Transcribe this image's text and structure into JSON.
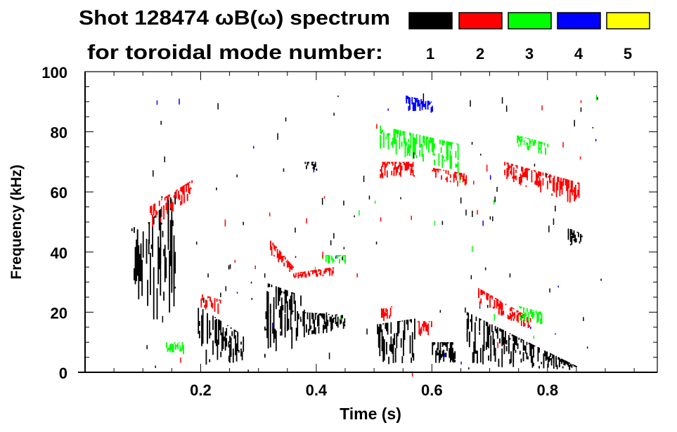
{
  "chart_data": {
    "type": "heatmap",
    "title": "Shot 128474 ωB(ω) spectrum",
    "subtitle": "for toroidal mode number:",
    "xlabel": "Time (s)",
    "ylabel": "Frequency (kHz)",
    "xlim": [
      0,
      0.99
    ],
    "ylim": [
      0,
      100
    ],
    "xticks": [
      0.2,
      0.4,
      0.6,
      0.8
    ],
    "xtick_labels": [
      "0.2",
      "0.4",
      "0.6",
      "0.8"
    ],
    "yticks": [
      0,
      20,
      40,
      60,
      80,
      100
    ],
    "ytick_labels": [
      "0",
      "20",
      "40",
      "60",
      "80",
      "100"
    ],
    "legend": [
      {
        "label": "1",
        "color": "#000000"
      },
      {
        "label": "2",
        "color": "#ff0000"
      },
      {
        "label": "3",
        "color": "#00ff00"
      },
      {
        "label": "4",
        "color": "#0000ff"
      },
      {
        "label": "5",
        "color": "#ffff00"
      }
    ],
    "legend_placement": "top-right",
    "regions": [
      {
        "mode": 1,
        "t": [
          0.08,
          0.11
        ],
        "f_start": [
          28,
          48
        ],
        "f_end": [
          15,
          50
        ]
      },
      {
        "mode": 1,
        "t": [
          0.11,
          0.155
        ],
        "f_start": [
          15,
          50
        ],
        "f_end": [
          20,
          60
        ]
      },
      {
        "mode": 1,
        "t": [
          0.195,
          0.275
        ],
        "f_start": [
          2,
          22
        ],
        "f_end": [
          3,
          12
        ]
      },
      {
        "mode": 1,
        "t": [
          0.31,
          0.38
        ],
        "f_start": [
          3,
          30
        ],
        "f_end": [
          10,
          25
        ]
      },
      {
        "mode": 1,
        "t": [
          0.38,
          0.45
        ],
        "f_start": [
          12,
          20
        ],
        "f_end": [
          14,
          19
        ]
      },
      {
        "mode": 1,
        "t": [
          0.505,
          0.575
        ],
        "f_start": [
          2,
          16
        ],
        "f_end": [
          3,
          18
        ]
      },
      {
        "mode": 1,
        "t": [
          0.6,
          0.64
        ],
        "f_start": [
          3,
          10
        ],
        "f_end": [
          3,
          10
        ]
      },
      {
        "mode": 1,
        "t": [
          0.66,
          0.85
        ],
        "f_start": [
          2,
          20
        ],
        "f_end": [
          0.5,
          2
        ]
      },
      {
        "mode": 1,
        "t": [
          0.835,
          0.86
        ],
        "f_start": [
          42,
          48
        ],
        "f_end": [
          42,
          46
        ]
      },
      {
        "mode": 1,
        "t": [
          0.38,
          0.4
        ],
        "f_start": [
          67,
          70
        ],
        "f_end": [
          67,
          70
        ]
      },
      {
        "mode": 2,
        "t": [
          0.11,
          0.185
        ],
        "f_start": [
          47,
          55
        ],
        "f_end": [
          58,
          64
        ]
      },
      {
        "mode": 2,
        "t": [
          0.2,
          0.235
        ],
        "f_start": [
          21,
          26
        ],
        "f_end": [
          19,
          24
        ]
      },
      {
        "mode": 2,
        "t": [
          0.32,
          0.36
        ],
        "f_start": [
          39,
          44
        ],
        "f_end": [
          32,
          35
        ]
      },
      {
        "mode": 2,
        "t": [
          0.36,
          0.43
        ],
        "f_start": [
          31,
          33
        ],
        "f_end": [
          32,
          35
        ]
      },
      {
        "mode": 2,
        "t": [
          0.51,
          0.57
        ],
        "f_start": [
          64,
          70
        ],
        "f_end": [
          65,
          70
        ]
      },
      {
        "mode": 2,
        "t": [
          0.51,
          0.53
        ],
        "f_start": [
          17,
          22
        ],
        "f_end": [
          17,
          22
        ]
      },
      {
        "mode": 2,
        "t": [
          0.575,
          0.6
        ],
        "f_start": [
          12,
          17
        ],
        "f_end": [
          12,
          17
        ]
      },
      {
        "mode": 2,
        "t": [
          0.68,
          0.77
        ],
        "f_start": [
          22,
          28
        ],
        "f_end": [
          14,
          18
        ]
      },
      {
        "mode": 2,
        "t": [
          0.725,
          0.855
        ],
        "f_start": [
          64,
          70
        ],
        "f_end": [
          55,
          63
        ]
      },
      {
        "mode": 2,
        "t": [
          0.6,
          0.66
        ],
        "f_start": [
          64,
          68
        ],
        "f_end": [
          62,
          66
        ]
      },
      {
        "mode": 3,
        "t": [
          0.51,
          0.645
        ],
        "f_start": [
          74,
          82
        ],
        "f_end": [
          66,
          76
        ]
      },
      {
        "mode": 3,
        "t": [
          0.745,
          0.8
        ],
        "f_start": [
          74,
          79
        ],
        "f_end": [
          72,
          76
        ]
      },
      {
        "mode": 3,
        "t": [
          0.41,
          0.45
        ],
        "f_start": [
          35,
          39
        ],
        "f_end": [
          36,
          39
        ]
      },
      {
        "mode": 3,
        "t": [
          0.75,
          0.79
        ],
        "f_start": [
          17,
          22
        ],
        "f_end": [
          15,
          20
        ]
      },
      {
        "mode": 3,
        "t": [
          0.14,
          0.17
        ],
        "f_start": [
          6,
          10
        ],
        "f_end": [
          6,
          10
        ]
      },
      {
        "mode": 4,
        "t": [
          0.555,
          0.6
        ],
        "f_start": [
          87,
          92
        ],
        "f_end": [
          86,
          90
        ]
      }
    ]
  }
}
